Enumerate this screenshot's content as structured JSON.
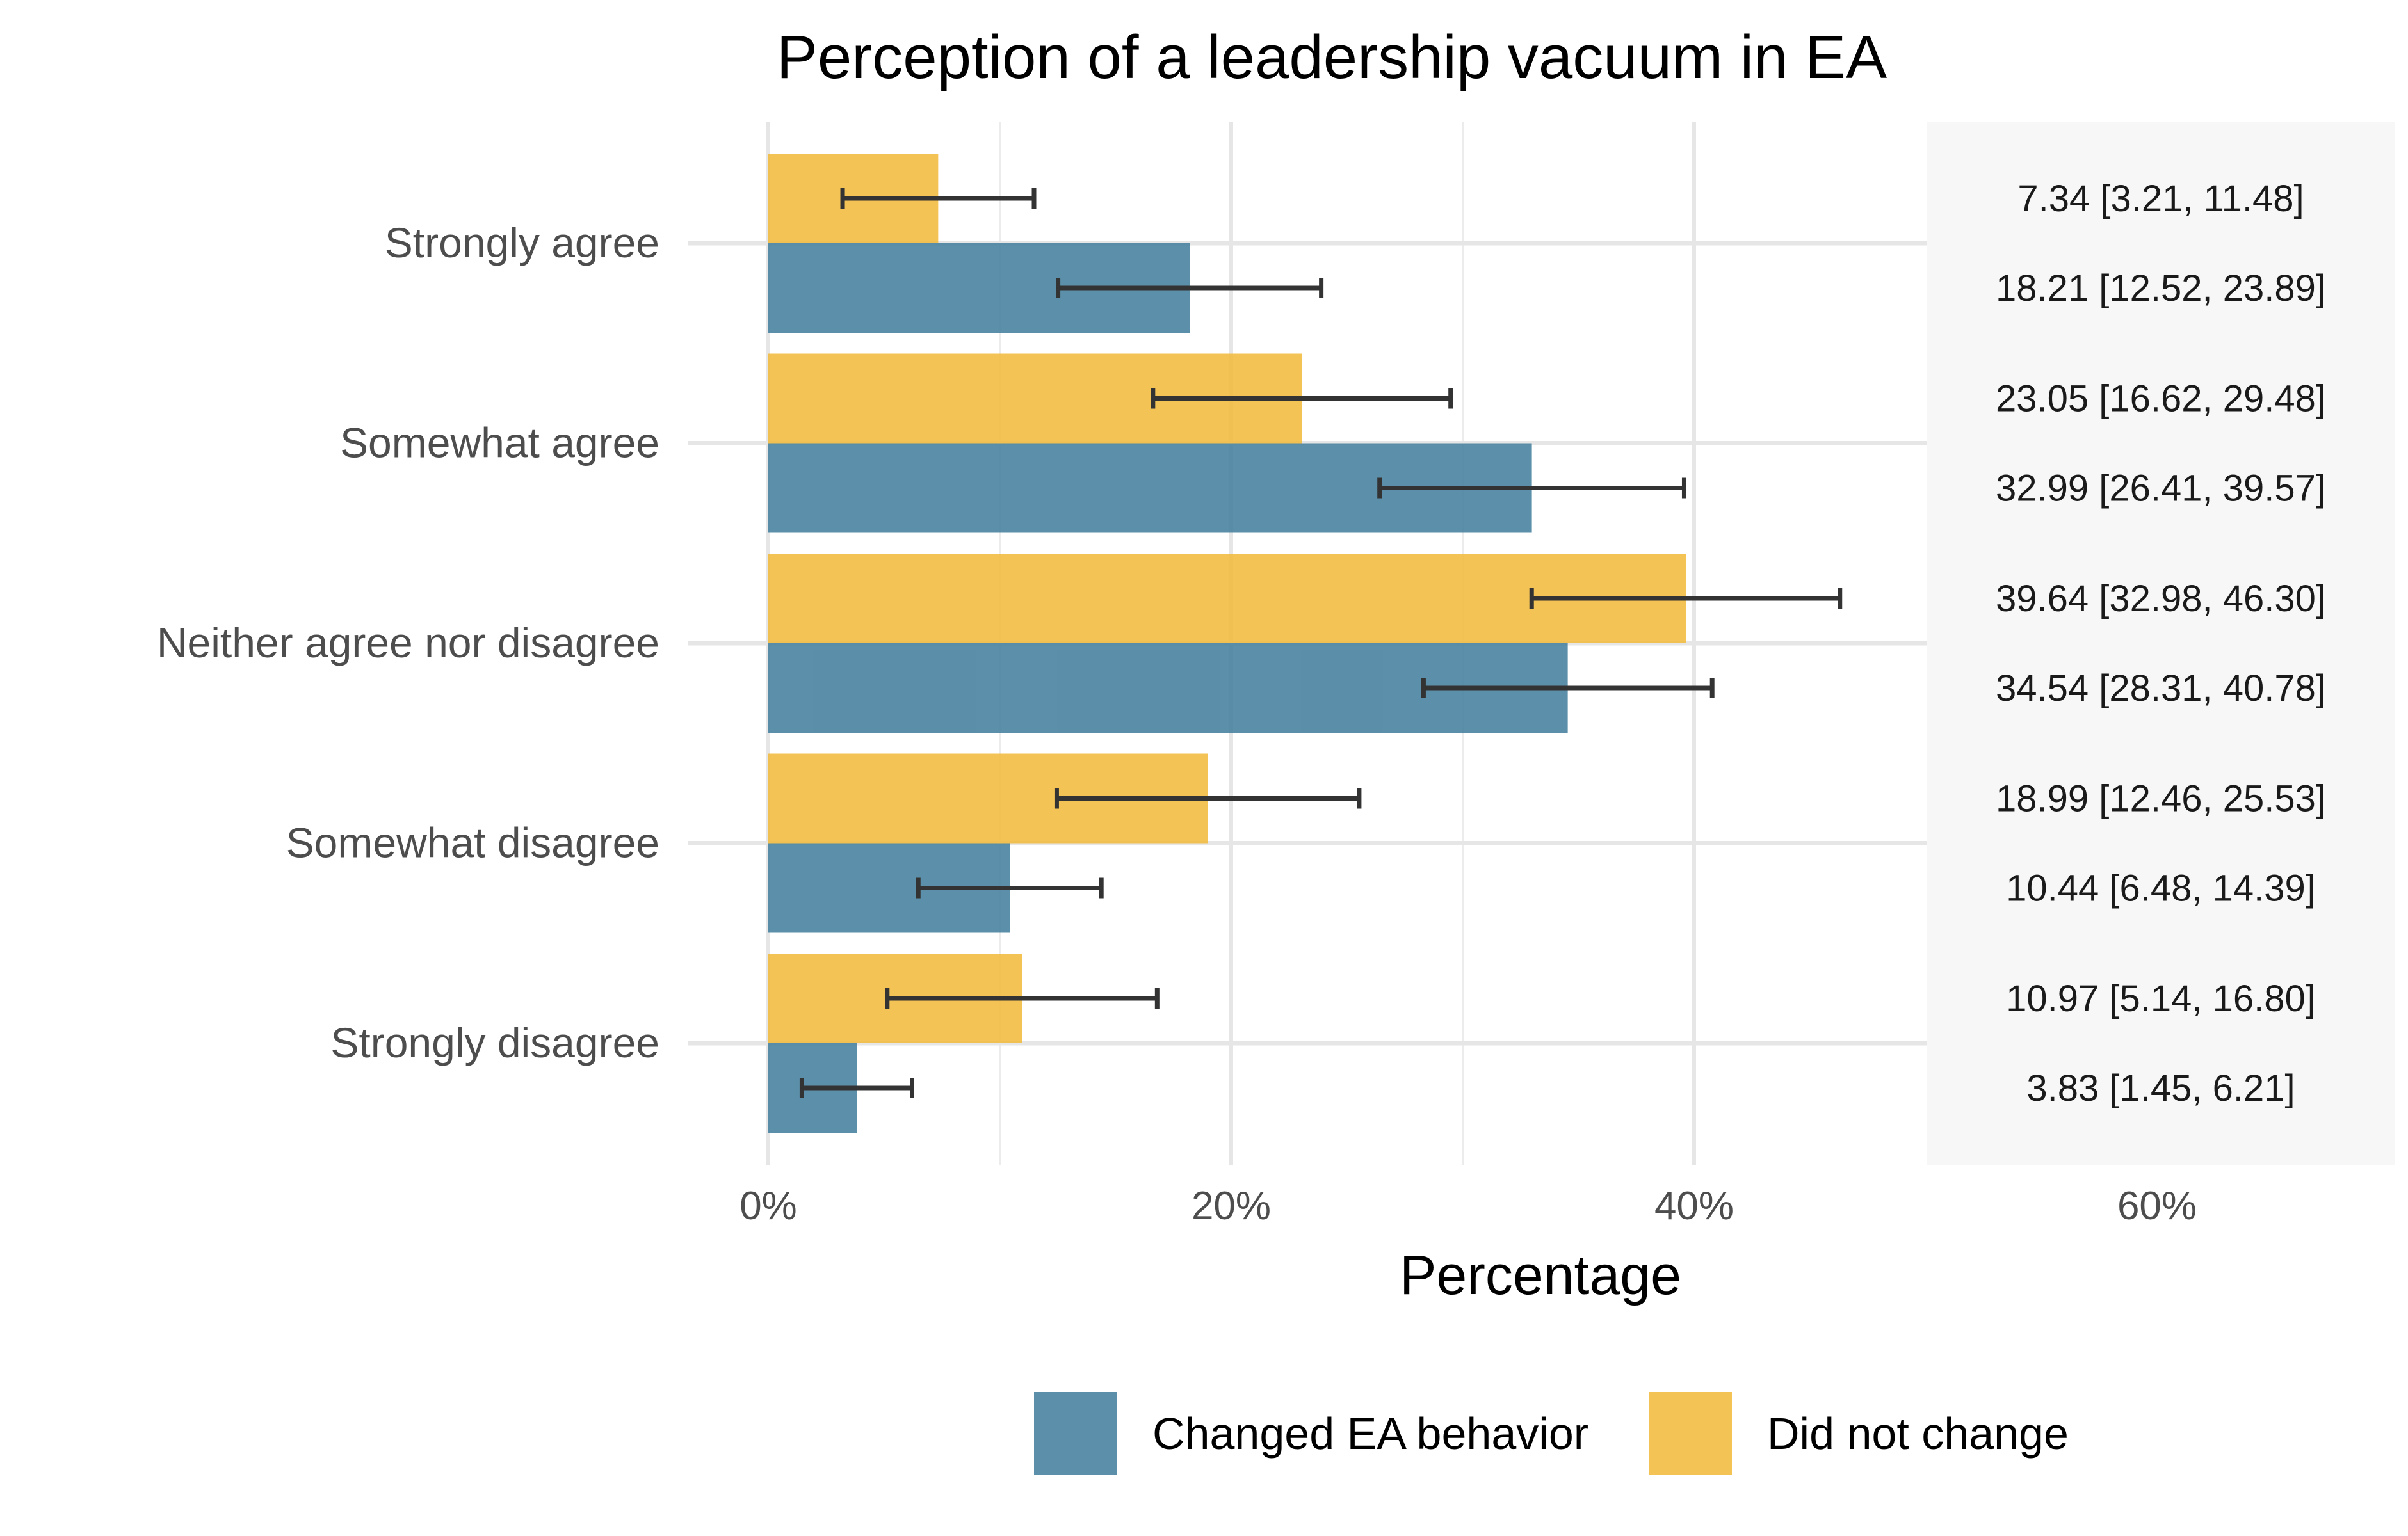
{
  "chart_data": {
    "type": "bar",
    "orientation": "horizontal",
    "title": "Perception of a leadership vacuum in EA",
    "xlabel": "Percentage",
    "ylabel": "",
    "xlim": [
      0,
      70
    ],
    "x_ticks": [
      0,
      20,
      40,
      60
    ],
    "x_tick_labels": [
      "0%",
      "20%",
      "40%",
      "60%"
    ],
    "grid": true,
    "legend_position": "bottom",
    "categories": [
      "Strongly agree",
      "Somewhat agree",
      "Neither agree nor disagree",
      "Somewhat disagree",
      "Strongly disagree"
    ],
    "series": [
      {
        "name": "Did not change",
        "color": "#F2BB3E",
        "values": [
          7.34,
          23.05,
          39.64,
          18.99,
          10.97
        ],
        "ci_low": [
          3.21,
          16.62,
          32.98,
          12.46,
          5.14
        ],
        "ci_high": [
          11.48,
          29.48,
          46.3,
          25.53,
          16.8
        ],
        "labels": [
          "7.34 [3.21, 11.48]",
          "23.05 [16.62, 29.48]",
          "39.64 [32.98, 46.30]",
          "18.99 [12.46, 25.53]",
          "10.97 [5.14, 16.80]"
        ]
      },
      {
        "name": "Changed EA behavior",
        "color": "#457F9D",
        "values": [
          18.21,
          32.99,
          34.54,
          10.44,
          3.83
        ],
        "ci_low": [
          12.52,
          26.41,
          28.31,
          6.48,
          1.45
        ],
        "ci_high": [
          23.89,
          39.57,
          40.78,
          14.39,
          6.21
        ],
        "labels": [
          "18.21 [12.52, 23.89]",
          "32.99 [26.41, 39.57]",
          "34.54 [28.31, 40.78]",
          "10.44 [6.48, 14.39]",
          "3.83 [1.45, 6.21]"
        ]
      }
    ],
    "legend_order": [
      "Changed EA behavior",
      "Did not change"
    ]
  }
}
